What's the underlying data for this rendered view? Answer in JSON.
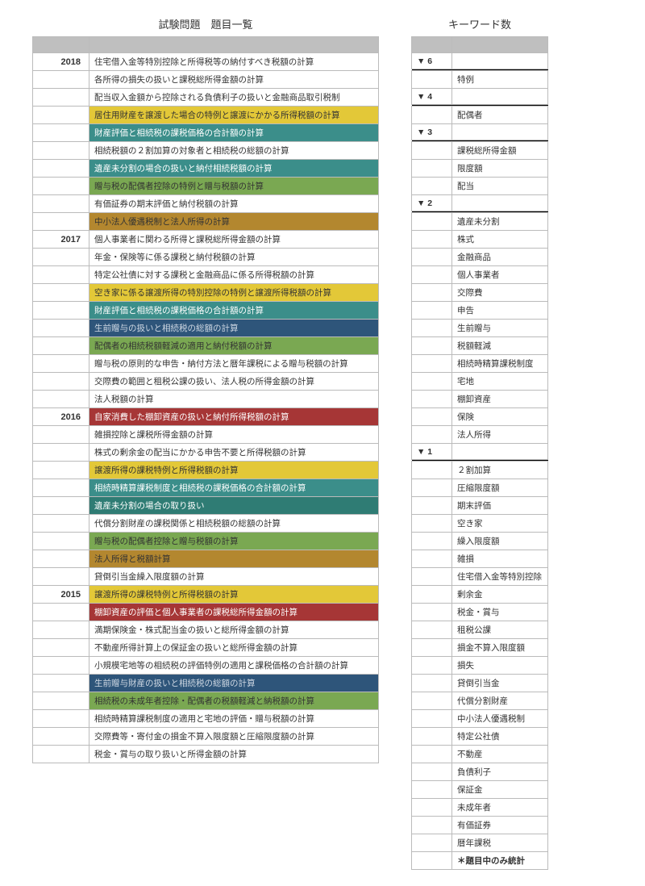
{
  "titles": {
    "left": "試験問題　題目一覧",
    "right": "キーワード数"
  },
  "colors": {
    "yellow": "#e3c838",
    "teal": "#3b8e8a",
    "green": "#7aa852",
    "brown": "#b3872f",
    "navy": "#2e557a",
    "red": "#a63636",
    "tealD": "#2f7c74"
  },
  "left_rows": [
    {
      "year": "2018",
      "text": "住宅借入金等特別控除と所得税等の納付すべき税額の計算",
      "bg": ""
    },
    {
      "year": "",
      "text": "各所得の損失の扱いと課税総所得金額の計算",
      "bg": ""
    },
    {
      "year": "",
      "text": "配当収入金額から控除される負債利子の扱いと金融商品取引税制",
      "bg": ""
    },
    {
      "year": "",
      "text": "居住用財産を譲渡した場合の特例と譲渡にかかる所得税額の計算",
      "bg": "yellow"
    },
    {
      "year": "",
      "text": "財産評価と相続税の課税価格の合計額の計算",
      "bg": "teal"
    },
    {
      "year": "",
      "text": "相続税額の２割加算の対象者と相続税の総額の計算",
      "bg": ""
    },
    {
      "year": "",
      "text": "遺産未分割の場合の扱いと納付相続税額の計算",
      "bg": "teal"
    },
    {
      "year": "",
      "text": "贈与税の配偶者控除の特例と贈与税額の計算",
      "bg": "green"
    },
    {
      "year": "",
      "text": "有価証券の期末評価と納付税額の計算",
      "bg": ""
    },
    {
      "year": "",
      "text": "中小法人優遇税制と法人所得の計算",
      "bg": "brown"
    },
    {
      "year": "2017",
      "text": "個人事業者に関わる所得と課税総所得金額の計算",
      "bg": ""
    },
    {
      "year": "",
      "text": "年金・保険等に係る課税と納付税額の計算",
      "bg": ""
    },
    {
      "year": "",
      "text": "特定公社債に対する課税と金融商品に係る所得税額の計算",
      "bg": ""
    },
    {
      "year": "",
      "text": "空き家に係る譲渡所得の特別控除の特例と譲渡所得税額の計算",
      "bg": "yellow"
    },
    {
      "year": "",
      "text": "財産評価と相続税の課税価格の合計額の計算",
      "bg": "teal"
    },
    {
      "year": "",
      "text": "生前贈与の扱いと相続税の総額の計算",
      "bg": "navy"
    },
    {
      "year": "",
      "text": "配偶者の相続税額軽減の適用と納付税額の計算",
      "bg": "green"
    },
    {
      "year": "",
      "text": "贈与税の原則的な申告・納付方法と暦年課税による贈与税額の計算",
      "bg": ""
    },
    {
      "year": "",
      "text": "交際費の範囲と租税公課の扱い、法人税の所得金額の計算",
      "bg": ""
    },
    {
      "year": "",
      "text": "法人税額の計算",
      "bg": ""
    },
    {
      "year": "2016",
      "text": "自家消費した棚卸資産の扱いと納付所得税額の計算",
      "bg": "red"
    },
    {
      "year": "",
      "text": "雑損控除と課税所得金額の計算",
      "bg": ""
    },
    {
      "year": "",
      "text": "株式の剰余金の配当にかかる申告不要と所得税額の計算",
      "bg": ""
    },
    {
      "year": "",
      "text": "譲渡所得の課税特例と所得税額の計算",
      "bg": "yellow"
    },
    {
      "year": "",
      "text": "相続時精算課税制度と相続税の課税価格の合計額の計算",
      "bg": "teal"
    },
    {
      "year": "",
      "text": "遺産未分割の場合の取り扱い",
      "bg": "tealD"
    },
    {
      "year": "",
      "text": "代償分割財産の課税関係と相続税額の総額の計算",
      "bg": ""
    },
    {
      "year": "",
      "text": "贈与税の配偶者控除と贈与税額の計算",
      "bg": "green"
    },
    {
      "year": "",
      "text": "法人所得と税額計算",
      "bg": "brown"
    },
    {
      "year": "",
      "text": "貸倒引当金繰入限度額の計算",
      "bg": ""
    },
    {
      "year": "2015",
      "text": "譲渡所得の課税特例と所得税額の計算",
      "bg": "yellow"
    },
    {
      "year": "",
      "text": "棚卸資産の評価と個人事業者の課税総所得金額の計算",
      "bg": "red"
    },
    {
      "year": "",
      "text": "満期保険金・株式配当金の扱いと総所得金額の計算",
      "bg": ""
    },
    {
      "year": "",
      "text": "不動産所得計算上の保証金の扱いと総所得金額の計算",
      "bg": ""
    },
    {
      "year": "",
      "text": "小規模宅地等の相続税の評価特例の適用と課税価格の合計額の計算",
      "bg": ""
    },
    {
      "year": "",
      "text": "生前贈与財産の扱いと相続税の総額の計算",
      "bg": "navy"
    },
    {
      "year": "",
      "text": "相続税の未成年者控除・配偶者の税額軽減と納税額の計算",
      "bg": "green"
    },
    {
      "year": "",
      "text": "相続時精算課税制度の適用と宅地の評価・贈与税額の計算",
      "bg": ""
    },
    {
      "year": "",
      "text": "交際費等・寄付金の損金不算入限度額と圧縮限度額の計算",
      "bg": ""
    },
    {
      "year": "",
      "text": "税金・賞与の取り扱いと所得金額の計算",
      "bg": ""
    }
  ],
  "right_groups": [
    {
      "label": "▼ 6",
      "items": [
        ""
      ]
    },
    {
      "break": true
    },
    {
      "items": [
        "特例"
      ]
    },
    {
      "label": "▼ 4",
      "items": [
        ""
      ]
    },
    {
      "break": true
    },
    {
      "items": [
        "配偶者"
      ]
    },
    {
      "label": "▼ 3",
      "items": [
        ""
      ]
    },
    {
      "break": true
    },
    {
      "items": [
        "課税総所得金額",
        "限度額",
        "配当"
      ]
    },
    {
      "label": "▼ 2",
      "items": [
        ""
      ]
    },
    {
      "break": true
    },
    {
      "items": [
        "遺産未分割",
        "株式",
        "金融商品",
        "個人事業者",
        "交際費",
        "申告",
        "生前贈与",
        "税額軽減",
        "相続時精算課税制度",
        "宅地",
        "棚卸資産",
        "保険",
        "法人所得"
      ]
    },
    {
      "label": "▼ 1",
      "items": [
        ""
      ]
    },
    {
      "break": true
    },
    {
      "items": [
        "２割加算",
        "圧縮限度額",
        "期末評価",
        "空き家",
        "繰入限度額",
        "雑損",
        "住宅借入金等特別控除",
        "剰余金",
        "税金・賞与",
        "租税公課",
        "損金不算入限度額",
        "損失",
        "貸倒引当金",
        "代償分割財産",
        "中小法人優遇税制",
        "特定公社債",
        "不動産",
        "負債利子",
        "保証金",
        "未成年者",
        "有価証券",
        "暦年課税"
      ]
    },
    {
      "footer": "＊題目中のみ統計"
    }
  ]
}
